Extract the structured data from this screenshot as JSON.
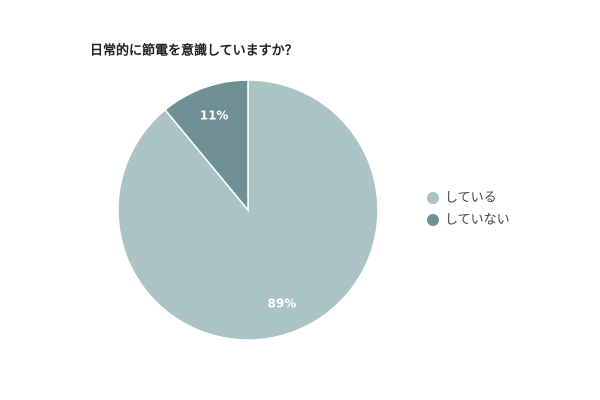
{
  "chart_data": {
    "type": "pie",
    "title": "日常的に節電を意識していますか？",
    "categories": [
      "している",
      "していない"
    ],
    "values": [
      89,
      11
    ],
    "value_labels": [
      "89%",
      "11%"
    ],
    "colors": [
      "#abc3c4",
      "#6e9095"
    ]
  }
}
